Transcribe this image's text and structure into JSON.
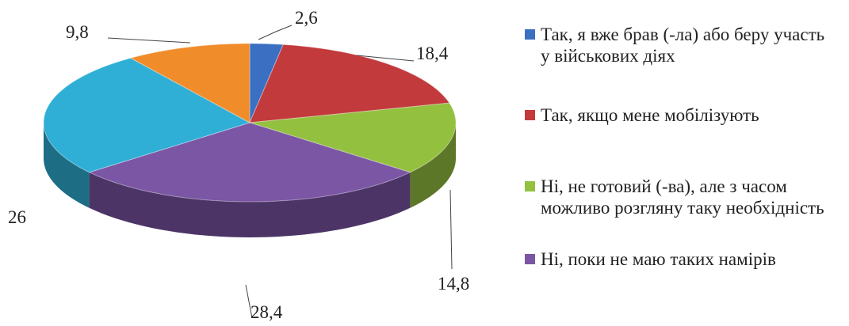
{
  "chart_data": {
    "type": "pie",
    "categories": [
      "Так, я вже брав (-ла) або беру участь у військових діях",
      "Так,  якщо мене мобілізують",
      "Ні, не готовий (-ва), але з часом можливо розгляну таку необхідність",
      "Ні, поки не маю таких намірів",
      null,
      null
    ],
    "values": [
      2.6,
      18.4,
      14.8,
      28.4,
      26,
      9.8
    ],
    "value_labels": [
      "2,6",
      "18,4",
      "14,8",
      "28,4",
      "26",
      "9,8"
    ],
    "colors": [
      "#3b6fc2",
      "#c23a3c",
      "#94c03f",
      "#7b56a4",
      "#2fafd6",
      "#f18c2a"
    ],
    "legend": "right"
  }
}
